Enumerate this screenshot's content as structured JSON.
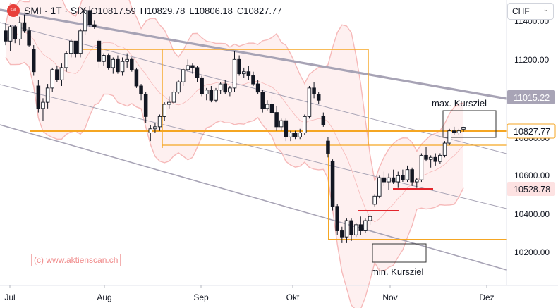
{
  "header": {
    "symbol": "SMI · 1T · SIX",
    "open": "O10817.59",
    "high": "H10829.78",
    "low": "L10806.18",
    "close": "C10827.77",
    "logo_text": "SMI"
  },
  "currency_select": {
    "value": "CHF"
  },
  "watermark": "(c) www.aktienscan.ch",
  "annotations": {
    "max_target": "max. Kursziel",
    "min_target": "min. Kursziel"
  },
  "badges": {
    "upper_channel": "11015.22",
    "last_price": "10827.77",
    "lower_price": "10528.78"
  },
  "colors": {
    "up": "#ffffff",
    "down": "#131722",
    "orange": "#f5a623",
    "channel_gray": "#a7a3b5",
    "band_fill": "#fde4e4",
    "band_line": "#f6b9b9",
    "red_level": "#e3252c"
  },
  "chart_data": {
    "type": "candlestick",
    "y_ticks": [
      "11400.00",
      "11200.00",
      "10800.00",
      "10600.00",
      "10400.00",
      "10200.00"
    ],
    "x_ticks": [
      "Jul",
      "Aug",
      "Sep",
      "Okt",
      "Nov",
      "Dez"
    ],
    "ylim": [
      10080,
      11430
    ],
    "y_axis_position": "right",
    "grid": false,
    "candles": [
      [
        11300,
        11340,
        11230,
        11250
      ],
      [
        11250,
        11330,
        11200,
        11320
      ],
      [
        11320,
        11330,
        11240,
        11260
      ],
      [
        11260,
        11370,
        11230,
        11340
      ],
      [
        11340,
        11380,
        11290,
        11300
      ],
      [
        11300,
        11320,
        11220,
        11230
      ],
      [
        11210,
        11230,
        11080,
        11100
      ],
      [
        11030,
        11060,
        10900,
        10920
      ],
      [
        10920,
        10970,
        10860,
        10950
      ],
      [
        10950,
        11040,
        10920,
        11020
      ],
      [
        11020,
        11120,
        11000,
        11110
      ],
      [
        11110,
        11130,
        11050,
        11060
      ],
      [
        11060,
        11140,
        11030,
        11120
      ],
      [
        11120,
        11200,
        11100,
        11190
      ],
      [
        11190,
        11260,
        11170,
        11250
      ],
      [
        11250,
        11250,
        11170,
        11190
      ],
      [
        11190,
        11310,
        11170,
        11300
      ],
      [
        11300,
        11410,
        11280,
        11400
      ],
      [
        11400,
        11420,
        11320,
        11330
      ],
      [
        11330,
        11350,
        11310,
        11320
      ],
      [
        11250,
        11260,
        11120,
        11150
      ],
      [
        11150,
        11190,
        11130,
        11180
      ],
      [
        11180,
        11190,
        11110,
        11120
      ],
      [
        11120,
        11170,
        11090,
        11160
      ],
      [
        11160,
        11180,
        11090,
        11100
      ],
      [
        11100,
        11170,
        11080,
        11150
      ],
      [
        11150,
        11190,
        11120,
        11160
      ],
      [
        11160,
        11170,
        11100,
        11110
      ],
      [
        11110,
        11120,
        11020,
        11030
      ],
      [
        11030,
        11040,
        10960,
        10990
      ],
      [
        10990,
        11000,
        10850,
        10880
      ],
      [
        10800,
        10840,
        10760,
        10820
      ],
      [
        10820,
        10850,
        10800,
        10830
      ],
      [
        10830,
        10890,
        10810,
        10880
      ],
      [
        10880,
        10950,
        10860,
        10940
      ],
      [
        10940,
        10980,
        10920,
        10950
      ],
      [
        10950,
        11010,
        10940,
        11000
      ],
      [
        11000,
        11060,
        10990,
        11050
      ],
      [
        11050,
        11120,
        11030,
        11110
      ],
      [
        11110,
        11160,
        11100,
        11130
      ],
      [
        11130,
        11140,
        11090,
        11120
      ],
      [
        11120,
        11130,
        11050,
        11070
      ],
      [
        11070,
        11080,
        10980,
        10990
      ],
      [
        10990,
        11020,
        10960,
        11010
      ],
      [
        11010,
        11030,
        10950,
        10960
      ],
      [
        10960,
        11020,
        10950,
        11010
      ],
      [
        11010,
        11050,
        10990,
        11040
      ],
      [
        11040,
        11060,
        10990,
        11000
      ],
      [
        11000,
        11030,
        10980,
        11020
      ],
      [
        11020,
        11200,
        11000,
        11160
      ],
      [
        11160,
        11180,
        11080,
        11090
      ],
      [
        11090,
        11120,
        11070,
        11100
      ],
      [
        11100,
        11130,
        11060,
        11080
      ],
      [
        11080,
        11100,
        11030,
        11040
      ],
      [
        11040,
        11060,
        10990,
        11000
      ],
      [
        11000,
        11010,
        10900,
        10920
      ],
      [
        10920,
        10960,
        10910,
        10940
      ],
      [
        10940,
        10980,
        10880,
        10900
      ],
      [
        10900,
        10930,
        10810,
        10830
      ],
      [
        10830,
        10870,
        10810,
        10860
      ],
      [
        10860,
        10870,
        10760,
        10780
      ],
      [
        10780,
        10810,
        10760,
        10800
      ],
      [
        10800,
        10810,
        10770,
        10780
      ],
      [
        10780,
        10820,
        10770,
        10800
      ],
      [
        10800,
        10890,
        10790,
        10880
      ],
      [
        10880,
        11030,
        10870,
        11020
      ],
      [
        11020,
        11050,
        10970,
        10990
      ],
      [
        10990,
        11000,
        10940,
        10960
      ],
      [
        10880,
        10900,
        10830,
        10840
      ],
      [
        10760,
        10780,
        10680,
        10700
      ],
      [
        10660,
        10670,
        10420,
        10440
      ],
      [
        10440,
        10450,
        10300,
        10320
      ],
      [
        10320,
        10340,
        10260,
        10290
      ],
      [
        10290,
        10380,
        10260,
        10370
      ],
      [
        10370,
        10380,
        10270,
        10300
      ],
      [
        10300,
        10360,
        10290,
        10350
      ],
      [
        10350,
        10390,
        10300,
        10320
      ],
      [
        10320,
        10380,
        10310,
        10370
      ],
      [
        10370,
        10400,
        10350,
        10390
      ],
      [
        10450,
        10500,
        10440,
        10490
      ],
      [
        10490,
        10590,
        10480,
        10580
      ],
      [
        10580,
        10610,
        10540,
        10560
      ],
      [
        10560,
        10600,
        10520,
        10580
      ],
      [
        10580,
        10620,
        10550,
        10560
      ],
      [
        10560,
        10610,
        10530,
        10590
      ],
      [
        10590,
        10620,
        10560,
        10570
      ],
      [
        10570,
        10640,
        10560,
        10620
      ],
      [
        10620,
        10630,
        10540,
        10560
      ],
      [
        10560,
        10580,
        10530,
        10570
      ],
      [
        10570,
        10700,
        10560,
        10690
      ],
      [
        10690,
        10730,
        10660,
        10670
      ],
      [
        10670,
        10690,
        10630,
        10680
      ],
      [
        10680,
        10700,
        10640,
        10660
      ],
      [
        10660,
        10700,
        10650,
        10690
      ],
      [
        10690,
        10760,
        10680,
        10750
      ],
      [
        10750,
        10820,
        10740,
        10810
      ],
      [
        10810,
        10830,
        10790,
        10800
      ],
      [
        10800,
        10820,
        10790,
        10810
      ],
      [
        10818,
        10830,
        10806,
        10828
      ]
    ],
    "levels": {
      "channel_upper": 11015.22,
      "price_line": 10827.77,
      "support_box_bottom": 10260,
      "support_band": 10760,
      "red_level_1": 10410,
      "red_level_2": 10530
    }
  }
}
